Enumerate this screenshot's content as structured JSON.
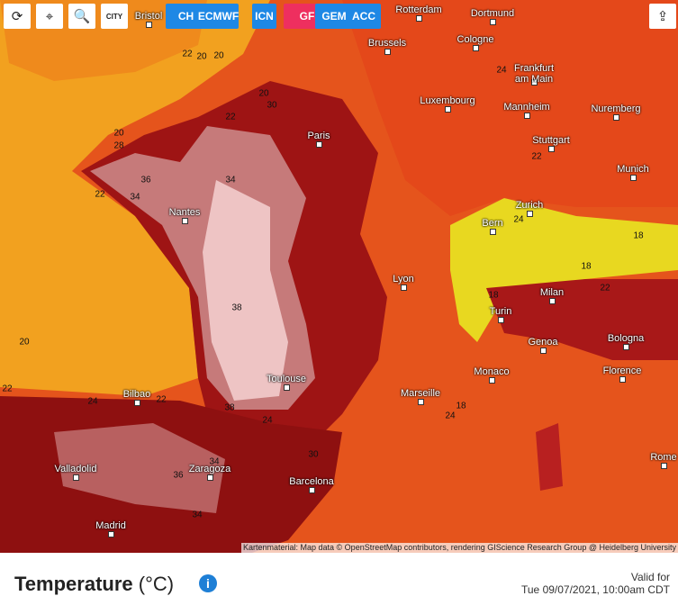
{
  "toolbar": {
    "city_button": "CITY",
    "models": [
      "CH",
      "ECMWF",
      "ICN",
      "GFS",
      "GEM",
      "ACC"
    ]
  },
  "cities": [
    "Bristol",
    "Rotterdam",
    "Dortmund",
    "Brussels",
    "Cologne",
    "Frankfurt am Main",
    "Luxembourg",
    "Mannheim",
    "Nuremberg",
    "Paris",
    "Stuttgart",
    "Munich",
    "Nantes",
    "Zurich",
    "Bern",
    "Lyon",
    "Milan",
    "Turin",
    "Bologna",
    "Genoa",
    "Toulouse",
    "Monaco",
    "Florence",
    "Marseille",
    "Bilbao",
    "Rome",
    "Valladolid",
    "Zaragoza",
    "Barcelona",
    "Madrid"
  ],
  "contour_labels": [
    22,
    20,
    20,
    20,
    22,
    30,
    20,
    28,
    36,
    34,
    22,
    34,
    38,
    20,
    22,
    24,
    22,
    38,
    24,
    24,
    22,
    24,
    18,
    18,
    18,
    22,
    24,
    18,
    34,
    34,
    30,
    36
  ],
  "attribution": "Kartenmaterial: Map data © OpenStreetMap contributors, rendering GIScience Research Group @ Heidelberg University",
  "footer": {
    "title": "Temperature",
    "unit": "(°C)",
    "valid_label": "Valid for",
    "valid_time": "Tue 09/07/2021, 10:00am CDT"
  }
}
